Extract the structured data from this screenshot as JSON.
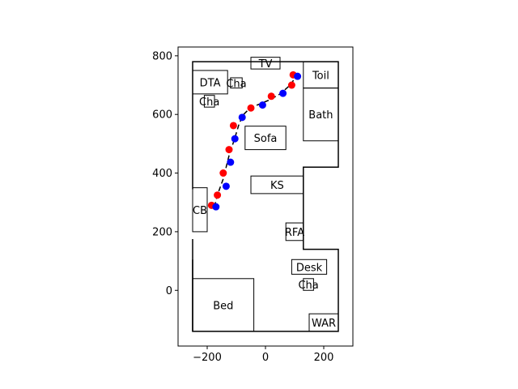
{
  "chart_data": {
    "type": "scatter",
    "title": "",
    "xlabel": "",
    "ylabel": "",
    "xlim": [
      -300,
      300
    ],
    "ylim": [
      -190,
      830
    ],
    "xticks": [
      -200,
      0,
      200
    ],
    "yticks": [
      0,
      200,
      400,
      600,
      800
    ],
    "xtick_labels": [
      "−200",
      "0",
      "200"
    ],
    "ytick_labels": [
      "0",
      "200",
      "400",
      "600",
      "800"
    ],
    "grid": false,
    "walls": [
      [
        [
          -250,
          175
        ],
        [
          -250,
          -140
        ],
        [
          250,
          -140
        ],
        [
          250,
          140
        ],
        [
          130,
          140
        ],
        [
          130,
          420
        ],
        [
          250,
          420
        ],
        [
          250,
          780
        ],
        [
          -250,
          780
        ],
        [
          -250,
          345
        ]
      ],
      [
        [
          -250,
          105
        ],
        [
          -250,
          -140
        ]
      ]
    ],
    "furniture": [
      {
        "label": "TV",
        "x": [
          -50,
          50
        ],
        "y": [
          755,
          795
        ]
      },
      {
        "label": "Toil",
        "x": [
          130,
          250
        ],
        "y": [
          690,
          780
        ]
      },
      {
        "label": "DTA",
        "x": [
          -250,
          -130
        ],
        "y": [
          670,
          750
        ]
      },
      {
        "label": "Cha",
        "x": [
          -120,
          -80
        ],
        "y": [
          690,
          725
        ]
      },
      {
        "label": "Cha",
        "x": [
          -210,
          -175
        ],
        "y": [
          625,
          665
        ]
      },
      {
        "label": "Bath",
        "x": [
          130,
          250
        ],
        "y": [
          510,
          690
        ]
      },
      {
        "label": "Sofa",
        "x": [
          -70,
          70
        ],
        "y": [
          480,
          560
        ]
      },
      {
        "label": "KS",
        "x": [
          -50,
          130
        ],
        "y": [
          330,
          390
        ]
      },
      {
        "label": "CB",
        "x": [
          -250,
          -200
        ],
        "y": [
          200,
          350
        ]
      },
      {
        "label": "RFA",
        "x": [
          70,
          130
        ],
        "y": [
          170,
          230
        ]
      },
      {
        "label": "Desk",
        "x": [
          90,
          210
        ],
        "y": [
          55,
          105
        ]
      },
      {
        "label": "Cha",
        "x": [
          130,
          165
        ],
        "y": [
          0,
          40
        ]
      },
      {
        "label": "Bed",
        "x": [
          -250,
          -40
        ],
        "y": [
          -140,
          40
        ]
      },
      {
        "label": "WAR",
        "x": [
          150,
          250
        ],
        "y": [
          -140,
          -80
        ]
      }
    ],
    "path_line": {
      "color": "#000000",
      "style": "dashed",
      "x": [
        -175,
        -165,
        -145,
        -125,
        -105,
        -90,
        -75,
        -50,
        -20,
        15,
        50,
        85,
        105
      ],
      "y": [
        285,
        325,
        380,
        460,
        520,
        570,
        600,
        625,
        635,
        650,
        670,
        700,
        730
      ]
    },
    "series": [
      {
        "color": "#ff0000",
        "x": [
          -185,
          -165,
          -145,
          -125,
          -110,
          -50,
          20,
          90,
          95
        ],
        "y": [
          290,
          325,
          400,
          480,
          562,
          622,
          662,
          700,
          735
        ]
      },
      {
        "color": "#0000ff",
        "x": [
          -170,
          -135,
          -120,
          -105,
          -80,
          -10,
          60,
          110
        ],
        "y": [
          285,
          355,
          437,
          517,
          590,
          632,
          672,
          730
        ]
      }
    ]
  }
}
